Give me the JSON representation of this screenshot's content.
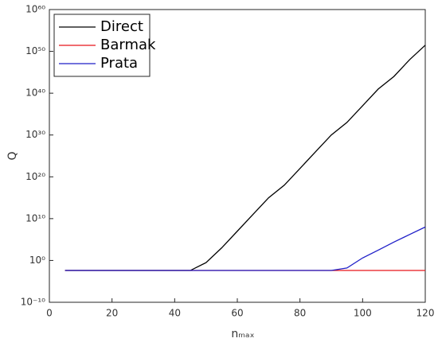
{
  "chart_data": {
    "type": "line",
    "x_label": "nₘₐₓ",
    "y_label": "Q",
    "x": [
      5,
      10,
      15,
      20,
      25,
      30,
      35,
      40,
      45,
      50,
      55,
      60,
      65,
      70,
      75,
      80,
      85,
      90,
      95,
      100,
      105,
      110,
      115,
      120
    ],
    "series": [
      {
        "name": "Direct",
        "color": "#000000",
        "values": [
          0.004,
          0.004,
          0.004,
          0.004,
          0.004,
          0.004,
          0.004,
          0.004,
          0.004,
          0.3,
          1000.0,
          10000000.0,
          100000000000.0,
          1000000000000000.0,
          1e+18,
          1e+22,
          1e+26,
          1e+30,
          1e+33,
          1e+37,
          1e+41,
          1e+44,
          1e+48,
          3e+51
        ]
      },
      {
        "name": "Barmak",
        "color": "#e8151b",
        "values": [
          0.004,
          0.004,
          0.004,
          0.004,
          0.004,
          0.004,
          0.004,
          0.004,
          0.004,
          0.004,
          0.004,
          0.004,
          0.004,
          0.004,
          0.004,
          0.004,
          0.004,
          0.004,
          0.004,
          0.004,
          0.004,
          0.004,
          0.004,
          0.004
        ]
      },
      {
        "name": "Prata",
        "color": "#1f1fc8",
        "values": [
          0.004,
          0.004,
          0.004,
          0.004,
          0.004,
          0.004,
          0.004,
          0.004,
          0.004,
          0.004,
          0.004,
          0.004,
          0.004,
          0.004,
          0.004,
          0.004,
          0.004,
          0.004,
          0.016,
          4,
          300,
          25000,
          1600000.0,
          100000000.0
        ]
      }
    ],
    "xlim": [
      0,
      120
    ],
    "xticks": [
      0,
      20,
      40,
      60,
      80,
      100,
      120
    ],
    "ylim": [
      1e-10,
      1e+60
    ],
    "y_scale": "log",
    "yticks": [
      {
        "value": 1e-10,
        "label": "10⁻¹⁰"
      },
      {
        "value": 1,
        "label": "10⁰"
      },
      {
        "value": 10000000000.0,
        "label": "10¹⁰"
      },
      {
        "value": 1e+20,
        "label": "10²⁰"
      },
      {
        "value": 1e+30,
        "label": "10³⁰"
      },
      {
        "value": 1e+40,
        "label": "10⁴⁰"
      },
      {
        "value": 1e+50,
        "label": "10⁵⁰"
      },
      {
        "value": 1e+60,
        "label": "10⁶⁰"
      }
    ],
    "legend": "top-left"
  }
}
